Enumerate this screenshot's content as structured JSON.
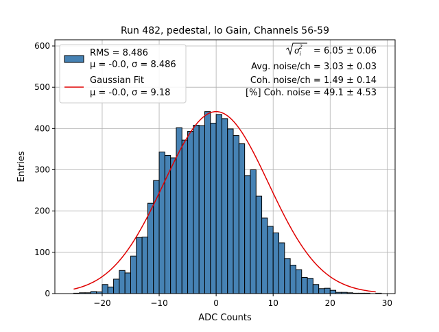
{
  "chart_data": {
    "type": "bar",
    "title": "Run 482, pedestal, lo Gain, Channels 56-59",
    "xlabel": "ADC Counts",
    "ylabel": "Entries",
    "xlim": [
      -28.3,
      31.4
    ],
    "ylim": [
      0,
      615
    ],
    "xticks": [
      -20,
      -10,
      0,
      10,
      20,
      30
    ],
    "yticks": [
      0,
      100,
      200,
      300,
      400,
      500,
      600
    ],
    "grid": true,
    "bin_width": 1,
    "bin_edges_start": -25,
    "values": [
      1,
      2,
      2,
      5,
      4,
      22,
      16,
      35,
      56,
      50,
      91,
      136,
      137,
      219,
      274,
      343,
      335,
      329,
      402,
      372,
      393,
      408,
      407,
      441,
      413,
      434,
      424,
      399,
      383,
      363,
      286,
      300,
      236,
      183,
      163,
      147,
      123,
      85,
      69,
      58,
      39,
      37,
      22,
      12,
      13,
      8,
      3,
      3,
      2,
      1,
      1,
      1,
      0,
      1
    ],
    "series": [
      {
        "name": "histogram",
        "legend": [
          "RMS = 8.486",
          "μ = -0.0, σ = 8.486"
        ],
        "color": "#4682b4"
      },
      {
        "name": "Gaussian Fit",
        "legend": [
          "Gaussian Fit",
          "μ = -0.0, σ = 9.18"
        ],
        "color": "#e00000",
        "mu": 0.0,
        "sigma": 9.18,
        "amplitude": 441,
        "x_range": [
          -25,
          28
        ]
      }
    ],
    "legend_position": "upper-left",
    "annotations": {
      "total_noise": "= 6.05 ± 0.06",
      "avg_noise": "Avg. noise/ch = 3.03 ± 0.03",
      "coh_noise": "Coh. noise/ch = 1.49 ± 0.14",
      "coh_pct": "[%] Coh. noise = 49.1 ± 4.53"
    }
  }
}
